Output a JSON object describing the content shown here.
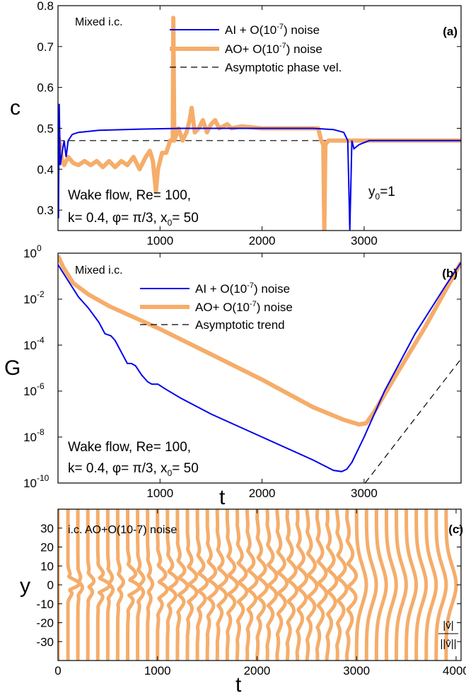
{
  "colors": {
    "ai": "#0000ee",
    "ao": "#f5ad6a",
    "asym": "#000000",
    "frame": "#000000"
  },
  "chart_data": [
    {
      "id": "a",
      "type": "line",
      "panel_label": "(a)",
      "ylabel": "c",
      "xlim": [
        0,
        3950
      ],
      "ylim": [
        0.25,
        0.8
      ],
      "x_ticks": [
        "1000",
        "2000",
        "3000"
      ],
      "y_ticks": [
        "0.3",
        "0.4",
        "0.5",
        "0.6",
        "0.7",
        "0.8"
      ],
      "annotations": {
        "ic": "Mixed i.c.",
        "line1": "Wake flow, Re= 100,",
        "line2": "k= 0.4, φ= π/3, x",
        "x0sub": "0",
        "line2end": "= 50",
        "y0": "y",
        "y0sub": "0",
        "y0end": "=1"
      },
      "legend": [
        {
          "name": "AI + O(10",
          "exp": "-7",
          "tail": ") noise",
          "style": "ai"
        },
        {
          "name": "AO+ O(10",
          "exp": "-7",
          "tail": ") noise",
          "style": "ao"
        },
        {
          "name": "Asymptotic phase vel.",
          "style": "asym"
        }
      ],
      "series": [
        {
          "name": "AI + O(10-7) noise",
          "style": "ai",
          "points": [
            [
              5,
              0.28
            ],
            [
              12,
              0.56
            ],
            [
              22,
              0.41
            ],
            [
              40,
              0.44
            ],
            [
              60,
              0.47
            ],
            [
              80,
              0.43
            ],
            [
              100,
              0.47
            ],
            [
              140,
              0.485
            ],
            [
              200,
              0.49
            ],
            [
              400,
              0.495
            ],
            [
              800,
              0.498
            ],
            [
              1200,
              0.5
            ],
            [
              2000,
              0.5
            ],
            [
              2500,
              0.5
            ],
            [
              2700,
              0.497
            ],
            [
              2800,
              0.49
            ],
            [
              2840,
              0.47
            ],
            [
              2860,
              0.25
            ],
            [
              2880,
              0.47
            ],
            [
              2900,
              0.45
            ],
            [
              2950,
              0.46
            ],
            [
              3050,
              0.47
            ],
            [
              3950,
              0.47
            ]
          ]
        },
        {
          "name": "AO+ O(10-7) noise",
          "style": "ao",
          "points": [
            [
              5,
              0.48
            ],
            [
              20,
              0.46
            ],
            [
              40,
              0.42
            ],
            [
              60,
              0.41
            ],
            [
              100,
              0.43
            ],
            [
              150,
              0.415
            ],
            [
              200,
              0.41
            ],
            [
              260,
              0.42
            ],
            [
              320,
              0.41
            ],
            [
              380,
              0.42
            ],
            [
              440,
              0.405
            ],
            [
              500,
              0.42
            ],
            [
              560,
              0.405
            ],
            [
              620,
              0.42
            ],
            [
              680,
              0.41
            ],
            [
              740,
              0.43
            ],
            [
              800,
              0.4
            ],
            [
              860,
              0.43
            ],
            [
              900,
              0.445
            ],
            [
              930,
              0.42
            ],
            [
              960,
              0.345
            ],
            [
              980,
              0.4
            ],
            [
              1020,
              0.44
            ],
            [
              1060,
              0.44
            ],
            [
              1100,
              0.47
            ],
            [
              1125,
              0.47
            ],
            [
              1130,
              0.77
            ],
            [
              1140,
              0.47
            ],
            [
              1180,
              0.5
            ],
            [
              1220,
              0.47
            ],
            [
              1260,
              0.49
            ],
            [
              1290,
              0.52
            ],
            [
              1310,
              0.55
            ],
            [
              1340,
              0.49
            ],
            [
              1380,
              0.5
            ],
            [
              1420,
              0.52
            ],
            [
              1460,
              0.49
            ],
            [
              1500,
              0.51
            ],
            [
              1540,
              0.52
            ],
            [
              1580,
              0.5
            ],
            [
              1620,
              0.505
            ],
            [
              1660,
              0.51
            ],
            [
              1700,
              0.5
            ],
            [
              1800,
              0.505
            ],
            [
              2000,
              0.5
            ],
            [
              2400,
              0.5
            ],
            [
              2550,
              0.5
            ],
            [
              2580,
              0.47
            ],
            [
              2600,
              0.46
            ],
            [
              2610,
              0.25
            ],
            [
              2620,
              0.46
            ],
            [
              2650,
              0.47
            ],
            [
              2800,
              0.47
            ],
            [
              3000,
              0.47
            ],
            [
              3950,
              0.47
            ]
          ]
        },
        {
          "name": "Asymptotic phase vel.",
          "style": "asym",
          "points": [
            [
              0,
              0.47
            ],
            [
              3950,
              0.47
            ]
          ]
        }
      ]
    },
    {
      "id": "b",
      "type": "line",
      "panel_label": "(b)",
      "ylabel": "G",
      "xlabel": "t",
      "scale": "log",
      "xlim": [
        0,
        3950
      ],
      "ylim_exp": [
        -10,
        0
      ],
      "x_ticks": [
        "1000",
        "2000",
        "3000"
      ],
      "y_ticks_exp": [
        "0",
        "-2",
        "-4",
        "-6",
        "-8",
        "-10"
      ],
      "y_tick_base": "10",
      "annotations": {
        "ic": "Mixed i.c.",
        "line1": "Wake flow, Re= 100,",
        "line2": "k= 0.4, φ= π/3, x",
        "x0sub": "0",
        "line2end": "= 50"
      },
      "legend": [
        {
          "name": "AI + O(10",
          "exp": "-7",
          "tail": ") noise",
          "style": "ai"
        },
        {
          "name": "AO+ O(10",
          "exp": "-7",
          "tail": ") noise",
          "style": "ao"
        },
        {
          "name": "Asymptotic trend",
          "style": "asym"
        }
      ],
      "series": [
        {
          "name": "AI + O(10-7) noise",
          "style": "ai",
          "points_log10": [
            [
              0,
              -0.5
            ],
            [
              100,
              -1.2
            ],
            [
              200,
              -1.9
            ],
            [
              300,
              -2.4
            ],
            [
              400,
              -3.0
            ],
            [
              460,
              -3.5
            ],
            [
              520,
              -3.6
            ],
            [
              560,
              -3.8
            ],
            [
              620,
              -4.3
            ],
            [
              680,
              -4.8
            ],
            [
              720,
              -4.8
            ],
            [
              760,
              -4.9
            ],
            [
              820,
              -5.3
            ],
            [
              880,
              -5.6
            ],
            [
              920,
              -5.7
            ],
            [
              980,
              -5.7
            ],
            [
              1050,
              -5.9
            ],
            [
              1200,
              -6.3
            ],
            [
              1500,
              -7.0
            ],
            [
              2000,
              -8.0
            ],
            [
              2500,
              -9.0
            ],
            [
              2700,
              -9.45
            ],
            [
              2780,
              -9.5
            ],
            [
              2830,
              -9.4
            ],
            [
              2880,
              -9.1
            ],
            [
              3000,
              -8.0
            ],
            [
              3200,
              -6.0
            ],
            [
              3500,
              -3.5
            ],
            [
              3800,
              -1.4
            ],
            [
              3950,
              -0.4
            ]
          ]
        },
        {
          "name": "AO+ O(10-7) noise",
          "style": "ao",
          "points_log10": [
            [
              0,
              -0.1
            ],
            [
              50,
              -0.6
            ],
            [
              150,
              -1.3
            ],
            [
              300,
              -1.8
            ],
            [
              500,
              -2.3
            ],
            [
              1000,
              -3.3
            ],
            [
              1500,
              -4.4
            ],
            [
              2000,
              -5.5
            ],
            [
              2500,
              -6.7
            ],
            [
              2800,
              -7.25
            ],
            [
              2950,
              -7.45
            ],
            [
              3020,
              -7.4
            ],
            [
              3100,
              -6.9
            ],
            [
              3300,
              -5.4
            ],
            [
              3600,
              -3.2
            ],
            [
              3950,
              -0.4
            ]
          ]
        },
        {
          "name": "Asymptotic trend",
          "style": "asym",
          "points_log10": [
            [
              3010,
              -10.0
            ],
            [
              3950,
              -4.6
            ]
          ]
        }
      ]
    },
    {
      "id": "c",
      "type": "line",
      "panel_label": "(c)",
      "ylabel": "y",
      "xlabel": "t",
      "xlim": [
        0,
        4050
      ],
      "ylim": [
        -40,
        40
      ],
      "x_ticks": [
        "0",
        "1000",
        "2000",
        "3000",
        "4000"
      ],
      "y_ticks": [
        "30",
        "20",
        "10",
        "0",
        "-10",
        "-20",
        "-30"
      ],
      "annotations": {
        "ic": "i.c. AO+O(10-7) noise",
        "norm_num": "|v̂|",
        "norm_den": "||v̂||"
      },
      "profile_times": [
        0,
        100,
        200,
        300,
        400,
        500,
        600,
        700,
        800,
        900,
        1000,
        1100,
        1200,
        1300,
        1400,
        1500,
        1600,
        1700,
        1800,
        1900,
        2000,
        2100,
        2200,
        2300,
        2400,
        2500,
        2600,
        2700,
        2800,
        2900,
        3000,
        3100,
        3200,
        3300,
        3400,
        3500,
        3600,
        3700,
        3800,
        3900
      ]
    }
  ]
}
